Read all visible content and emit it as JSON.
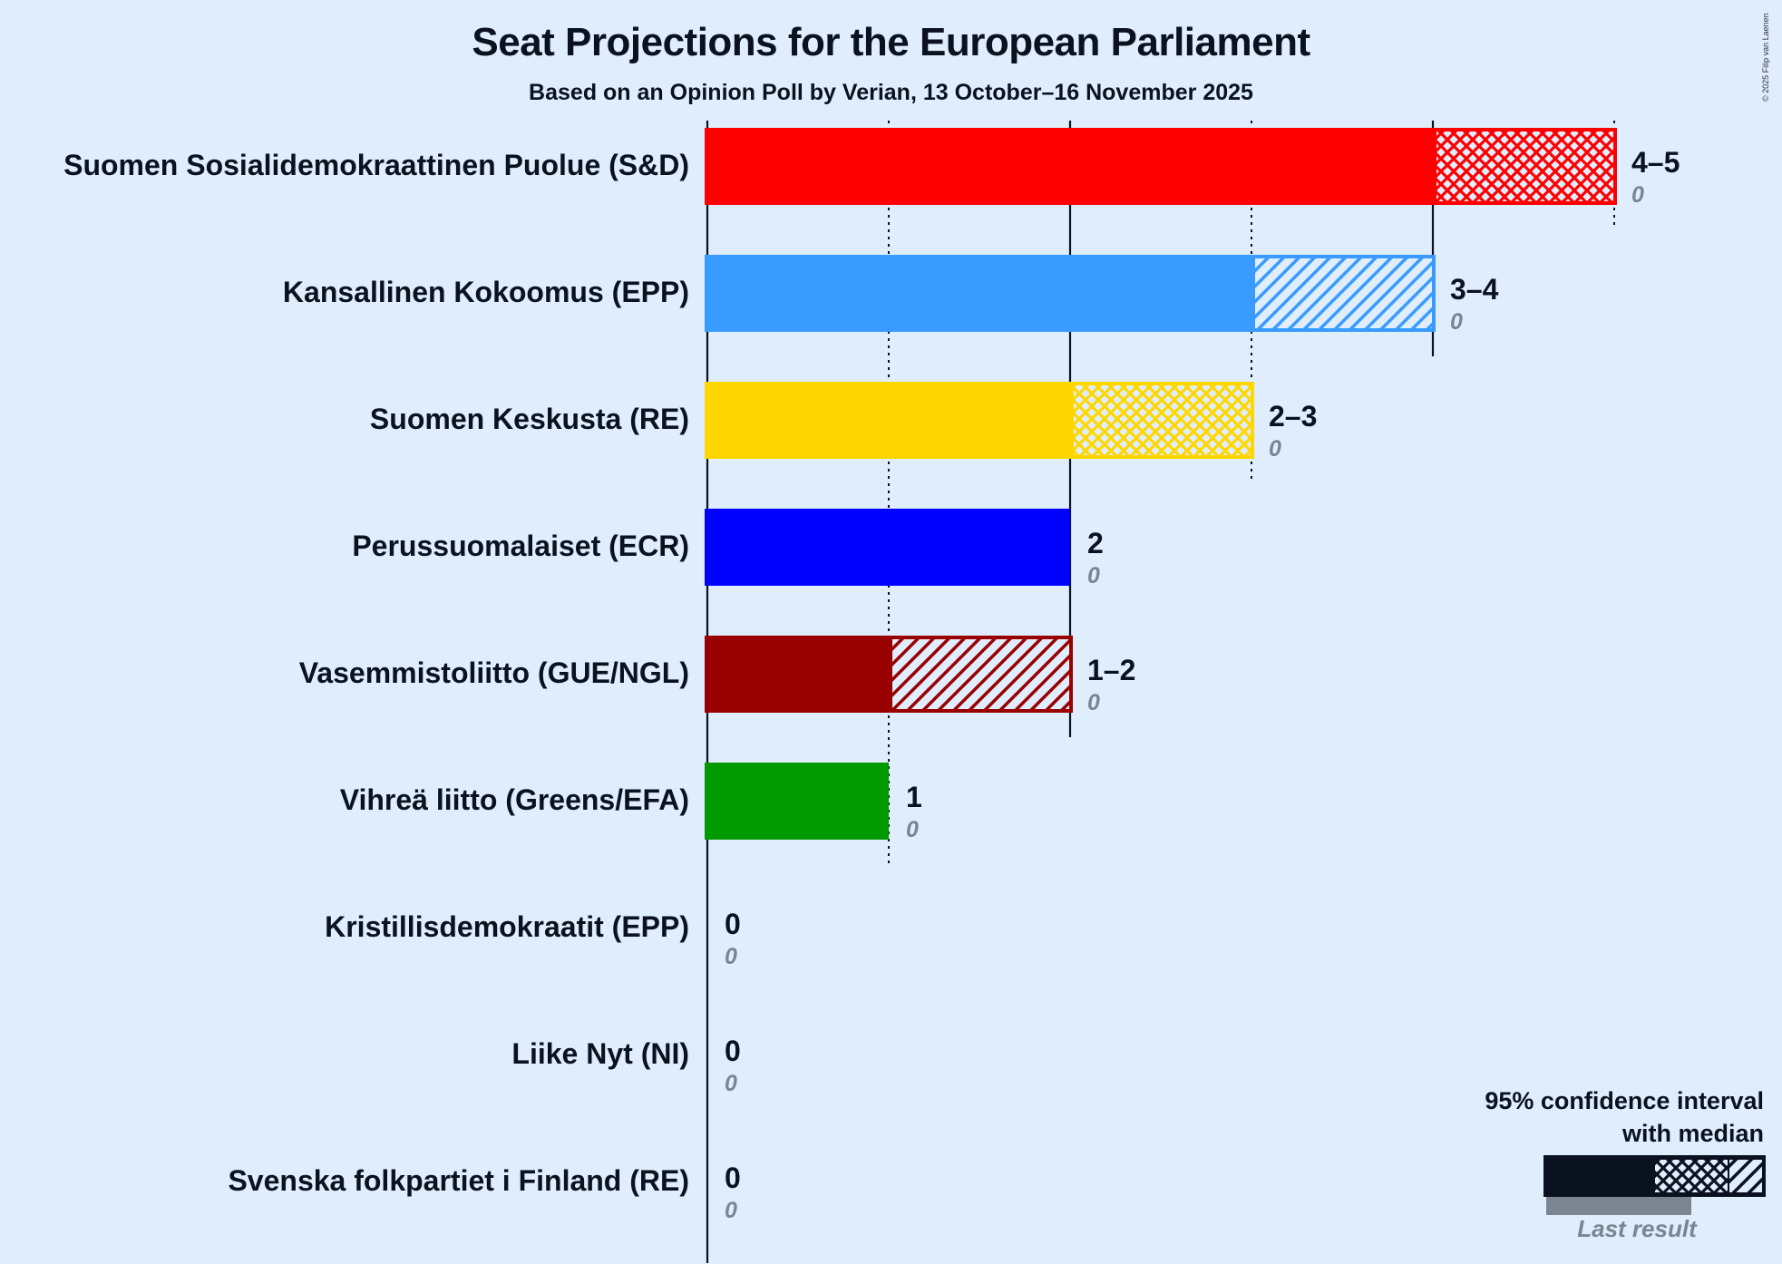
{
  "header": {
    "title": "Seat Projections for the European Parliament",
    "subtitle": "Based on an Opinion Poll by Verian, 13 October–16 November 2025",
    "copyright": "© 2025 Filip van Laenen"
  },
  "legend": {
    "line1": "95% confidence interval",
    "line2": "with median",
    "last_result": "Last result"
  },
  "colors": {
    "background": "#dfedfd",
    "text": "#0a1220",
    "last_result": "#7a8591"
  },
  "parties": [
    {
      "name": "Suomen Sosialidemokraattinen Puolue (S&D)",
      "low": 4,
      "high": 5,
      "median": 5,
      "range": "4–5",
      "last": "0",
      "color": "#ff0000",
      "pattern": "cross"
    },
    {
      "name": "Kansallinen Kokoomus (EPP)",
      "low": 3,
      "high": 4,
      "median": 3,
      "range": "3–4",
      "last": "0",
      "color": "#3a9bff",
      "pattern": "diag"
    },
    {
      "name": "Suomen Keskusta (RE)",
      "low": 2,
      "high": 3,
      "median": 3,
      "range": "2–3",
      "last": "0",
      "color": "#ffd700",
      "pattern": "cross"
    },
    {
      "name": "Perussuomalaiset (ECR)",
      "low": 2,
      "high": 2,
      "median": 2,
      "range": "2",
      "last": "0",
      "color": "#0000ff",
      "pattern": "none"
    },
    {
      "name": "Vasemmistoliitto (GUE/NGL)",
      "low": 1,
      "high": 2,
      "median": 1,
      "range": "1–2",
      "last": "0",
      "color": "#990000",
      "pattern": "diag"
    },
    {
      "name": "Vihreä liitto (Greens/EFA)",
      "low": 1,
      "high": 1,
      "median": 1,
      "range": "1",
      "last": "0",
      "color": "#009900",
      "pattern": "none"
    },
    {
      "name": "Kristillisdemokraatit (EPP)",
      "low": 0,
      "high": 0,
      "median": 0,
      "range": "0",
      "last": "0",
      "color": "#1a4aa0",
      "pattern": "none"
    },
    {
      "name": "Liike Nyt (NI)",
      "low": 0,
      "high": 0,
      "median": 0,
      "range": "0",
      "last": "0",
      "color": "#555555",
      "pattern": "none"
    },
    {
      "name": "Svenska folkpartiet i Finland (RE)",
      "low": 0,
      "high": 0,
      "median": 0,
      "range": "0",
      "last": "0",
      "color": "#ffd700",
      "pattern": "none"
    }
  ],
  "chart_data": {
    "type": "bar",
    "orientation": "horizontal",
    "title": "Seat Projections for the European Parliament",
    "subtitle": "Based on an Opinion Poll by Verian, 13 October–16 November 2025",
    "categories": [
      "Suomen Sosialidemokraattinen Puolue (S&D)",
      "Kansallinen Kokoomus (EPP)",
      "Suomen Keskusta (RE)",
      "Perussuomalaiset (ECR)",
      "Vasemmistoliitto (GUE/NGL)",
      "Vihreä liitto (Greens/EFA)",
      "Kristillisdemokraatit (EPP)",
      "Liike Nyt (NI)",
      "Svenska folkpartiet i Finland (RE)"
    ],
    "series": [
      {
        "name": "95% CI low",
        "values": [
          4,
          3,
          2,
          2,
          1,
          1,
          0,
          0,
          0
        ]
      },
      {
        "name": "95% CI high",
        "values": [
          5,
          4,
          3,
          2,
          2,
          1,
          0,
          0,
          0
        ]
      },
      {
        "name": "Median",
        "values": [
          5,
          3,
          3,
          2,
          1,
          1,
          0,
          0,
          0
        ]
      },
      {
        "name": "Last result",
        "values": [
          0,
          0,
          0,
          0,
          0,
          0,
          0,
          0,
          0
        ]
      }
    ],
    "range_labels": [
      "4–5",
      "3–4",
      "2–3",
      "2",
      "1–2",
      "1",
      "0",
      "0",
      "0"
    ],
    "xlabel": "",
    "ylabel": "",
    "xlim": [
      0,
      5
    ],
    "gridlines": {
      "solid": [
        0,
        2,
        4
      ],
      "dotted": [
        1,
        3,
        5
      ]
    },
    "legend": [
      "95% confidence interval with median",
      "Last result"
    ],
    "legend_position": "bottom-right"
  }
}
